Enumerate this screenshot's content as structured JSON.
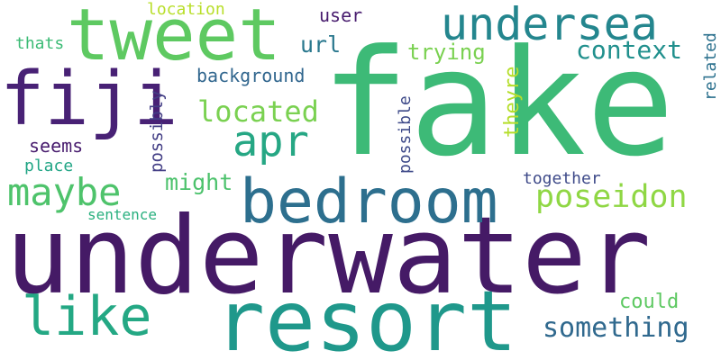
{
  "cloud": {
    "words": [
      {
        "text": "fake",
        "color": "#3dba77"
      },
      {
        "text": "underwater",
        "color": "#451a66"
      },
      {
        "text": "resort",
        "color": "#1f988b"
      },
      {
        "text": "tweet",
        "color": "#5ec961"
      },
      {
        "text": "fiji",
        "color": "#482175"
      },
      {
        "text": "bedroom",
        "color": "#2d6f8e"
      },
      {
        "text": "undersea",
        "color": "#24868e"
      },
      {
        "text": "like",
        "color": "#24a884"
      },
      {
        "text": "apr",
        "color": "#26a784"
      },
      {
        "text": "maybe",
        "color": "#4ec36b"
      },
      {
        "text": "poseidon",
        "color": "#8fd744"
      },
      {
        "text": "located",
        "color": "#7ad151"
      },
      {
        "text": "context",
        "color": "#21908d"
      },
      {
        "text": "something",
        "color": "#30698e"
      },
      {
        "text": "might",
        "color": "#4cc26c"
      },
      {
        "text": "url",
        "color": "#2a788e"
      },
      {
        "text": "trying",
        "color": "#7ad151"
      },
      {
        "text": "user",
        "color": "#481c6e"
      },
      {
        "text": "background",
        "color": "#31668e"
      },
      {
        "text": "location",
        "color": "#b8de29"
      },
      {
        "text": "thats",
        "color": "#3bbb75"
      },
      {
        "text": "seems",
        "color": "#481c6e"
      },
      {
        "text": "place",
        "color": "#21a585"
      },
      {
        "text": "sentence",
        "color": "#2ab07f"
      },
      {
        "text": "could",
        "color": "#5ec962"
      },
      {
        "text": "together",
        "color": "#3e4a89"
      },
      {
        "text": "possibly",
        "color": "#433e85"
      },
      {
        "text": "possible",
        "color": "#3e4a89"
      },
      {
        "text": "theyre",
        "color": "#b5de2b"
      },
      {
        "text": "related",
        "color": "#2c718e"
      }
    ]
  }
}
